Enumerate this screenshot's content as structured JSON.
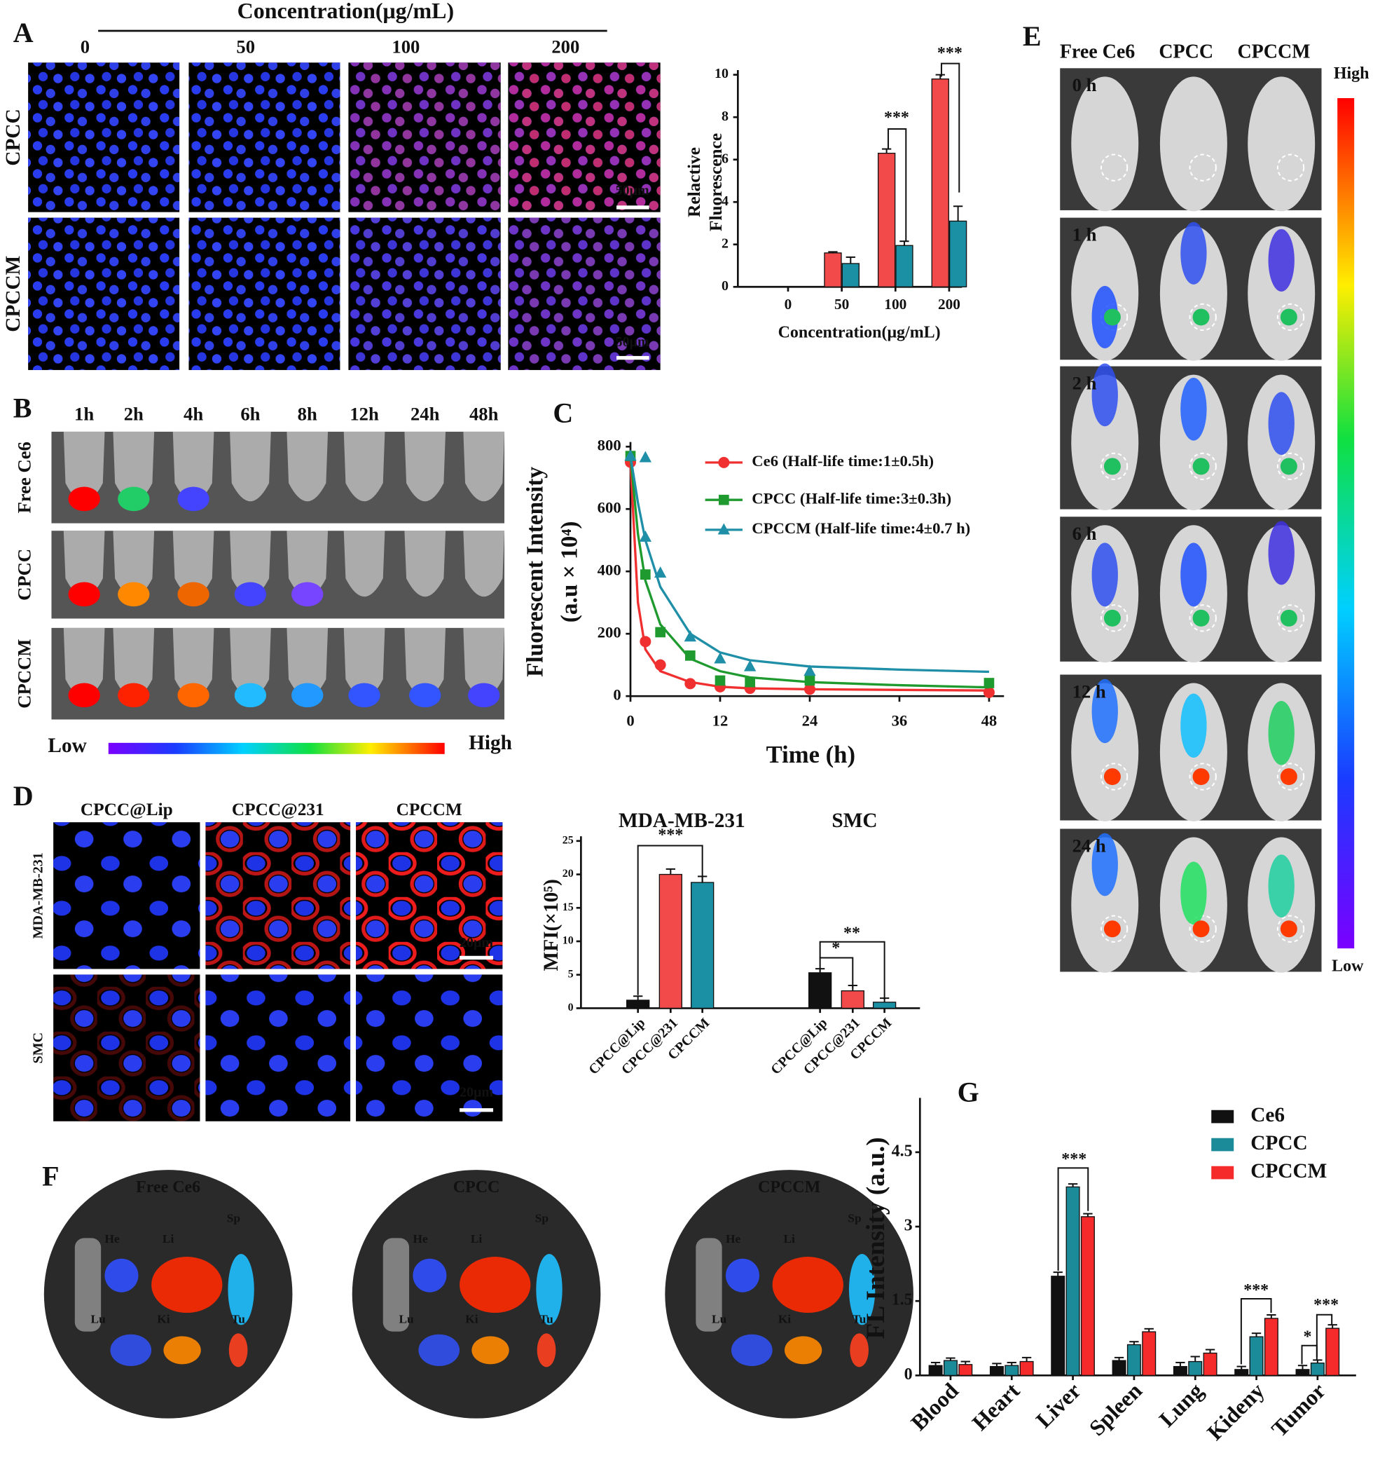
{
  "figure": {
    "panels": [
      "A",
      "B",
      "C",
      "D",
      "E",
      "F",
      "G"
    ],
    "a": {
      "header": "Concentration(μg/mL)",
      "columns": [
        "0",
        "50",
        "100",
        "200"
      ],
      "rows": [
        "CPCC",
        "CPCCM"
      ],
      "scale_bar": "50μm"
    },
    "b": {
      "times": [
        "1h",
        "2h",
        "4h",
        "6h",
        "8h",
        "12h",
        "24h",
        "48h"
      ],
      "rows": [
        "Free Ce6",
        "CPCC",
        "CPCCM"
      ],
      "low": "Low",
      "high": "High"
    },
    "d": {
      "columns": [
        "CPCC@Lip",
        "CPCC@231",
        "CPCCM"
      ],
      "rows": [
        "MDA-MB-231",
        "SMC"
      ],
      "scale_bar": "20μm"
    },
    "e": {
      "columns": [
        "Free Ce6",
        "CPCC",
        "CPCCM"
      ],
      "times": [
        "0 h",
        "1 h",
        "2 h",
        "6 h",
        "12 h",
        "24 h"
      ],
      "high": "High",
      "low": "Low"
    },
    "f": {
      "titles": [
        "Free Ce6",
        "CPCC",
        "CPCCM"
      ],
      "organs": [
        "He",
        "Li",
        "Sp",
        "Lu",
        "Ki",
        "Tu"
      ]
    }
  },
  "chart_data": [
    {
      "type": "bar",
      "ylabel": [
        "Relactive",
        "Fluorescence"
      ],
      "xlabel": "Concentration(μg/mL)",
      "categories": [
        "0",
        "50",
        "100",
        "200"
      ],
      "series": [
        {
          "color": "#f24a4a",
          "values": [
            0,
            1.6,
            6.3,
            9.8
          ],
          "errors": [
            0,
            0.05,
            0.2,
            0.2
          ]
        },
        {
          "color": "#1b8fa3",
          "values": [
            0,
            1.1,
            1.95,
            3.1
          ],
          "errors": [
            0,
            0.3,
            0.2,
            0.7
          ]
        }
      ],
      "ylim": [
        0,
        10
      ],
      "yticks": [
        0,
        2,
        4,
        6,
        8,
        10
      ],
      "annotations": [
        "***",
        "***"
      ]
    },
    {
      "type": "line",
      "ylabel": [
        "Fluorescent Intensity",
        "(a.u × 10⁴)"
      ],
      "xlabel": "Time (h)",
      "series": [
        {
          "name": "Ce6 (Half-life time:1±0.5h)",
          "color": "#f03030",
          "marker": "circle",
          "x": [
            0,
            2,
            4,
            8,
            12,
            16,
            24,
            48
          ],
          "values": [
            750,
            175,
            100,
            40,
            30,
            25,
            22,
            12
          ],
          "fit_x": [
            0,
            1,
            2,
            4,
            8,
            12,
            16,
            24,
            36,
            48
          ],
          "fit": [
            750,
            300,
            150,
            80,
            45,
            30,
            25,
            22,
            20,
            18
          ]
        },
        {
          "name": "CPCC (Half-life time:3±0.3h)",
          "color": "#1e9a2e",
          "marker": "square",
          "x": [
            0,
            2,
            4,
            8,
            12,
            16,
            24,
            48
          ],
          "values": [
            770,
            390,
            205,
            130,
            50,
            45,
            50,
            42
          ],
          "fit_x": [
            0,
            1,
            2,
            4,
            8,
            12,
            16,
            24,
            36,
            48
          ],
          "fit": [
            770,
            520,
            370,
            230,
            120,
            80,
            60,
            45,
            35,
            28
          ]
        },
        {
          "name": "CPCCM (Half-life time:4±0.7 h)",
          "color": "#1f8fa8",
          "marker": "triangle",
          "x": [
            0,
            2,
            2,
            4,
            8,
            12,
            16,
            24
          ],
          "values": [
            770,
            765,
            510,
            395,
            190,
            120,
            95,
            80
          ],
          "fit_x": [
            0,
            1,
            2,
            4,
            8,
            12,
            16,
            24,
            36,
            48
          ],
          "fit": [
            770,
            620,
            500,
            350,
            200,
            140,
            115,
            95,
            85,
            78
          ]
        }
      ],
      "xlim": [
        0,
        50
      ],
      "xticks": [
        0,
        12,
        24,
        36,
        48
      ],
      "ylim": [
        0,
        800
      ],
      "yticks": [
        0,
        200,
        400,
        600,
        800
      ]
    },
    {
      "type": "bar",
      "ylabel": "MFI(×10⁵)",
      "groups": [
        "MDA-MB-231",
        "SMC"
      ],
      "categories": [
        "CPCC@Lip",
        "CPCC@231",
        "CPCCM",
        "CPCC@Lip",
        "CPCC@231",
        "CPCCM"
      ],
      "values": [
        1.2,
        20,
        18.8,
        5.3,
        2.6,
        0.9
      ],
      "errors": [
        0.6,
        0.8,
        0.9,
        0.6,
        0.8,
        0.6
      ],
      "colors": [
        "#111111",
        "#f24a4a",
        "#1b8fa3",
        "#111111",
        "#f24a4a",
        "#1b8fa3"
      ],
      "ylim": [
        0,
        25
      ],
      "yticks": [
        0,
        5,
        10,
        15,
        20,
        25
      ],
      "annotations": [
        "***",
        "*",
        "**"
      ]
    },
    {
      "type": "bar",
      "ylabel": "FL Intensity (a.u.)",
      "categories": [
        "Blood",
        "Heart",
        "Liver",
        "Spleen",
        "Lung",
        "Kideny",
        "Tumor"
      ],
      "series": [
        {
          "name": "Ce6",
          "color": "#111111",
          "values": [
            0.2,
            0.18,
            2.0,
            0.3,
            0.18,
            0.12,
            0.12
          ],
          "errors": [
            0.06,
            0.06,
            0.08,
            0.06,
            0.08,
            0.06,
            0.08
          ]
        },
        {
          "name": "CPCC",
          "color": "#1b8a99",
          "values": [
            0.3,
            0.2,
            3.8,
            0.62,
            0.28,
            0.78,
            0.25
          ],
          "errors": [
            0.05,
            0.06,
            0.06,
            0.06,
            0.1,
            0.07,
            0.06
          ]
        },
        {
          "name": "CPCCM",
          "color": "#f52a2a",
          "values": [
            0.22,
            0.28,
            3.2,
            0.88,
            0.45,
            1.15,
            0.95
          ],
          "errors": [
            0.06,
            0.08,
            0.06,
            0.06,
            0.07,
            0.07,
            0.07
          ]
        }
      ],
      "ylim": [
        0,
        5.5
      ],
      "yticks": [
        0,
        1.5,
        3,
        4.5
      ],
      "legend": "upper right",
      "annotations": [
        "***",
        "***",
        "*",
        "***"
      ]
    }
  ]
}
